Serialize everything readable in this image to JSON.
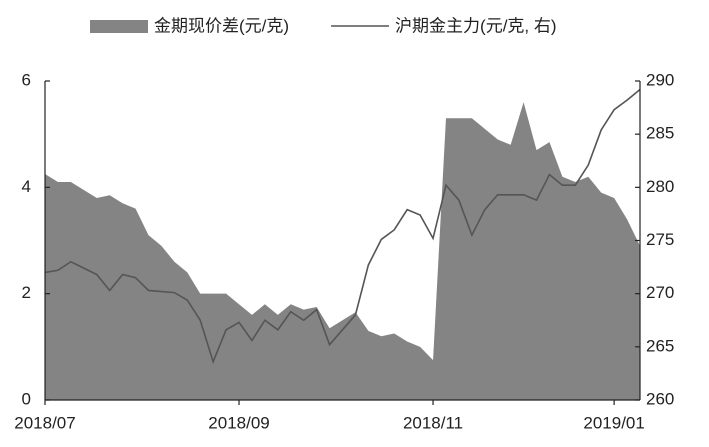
{
  "chart_data": {
    "type": "combo",
    "categories": [
      "2018/07",
      null,
      null,
      null,
      null,
      null,
      null,
      null,
      null,
      null,
      null,
      null,
      null,
      null,
      null,
      "2018/09",
      null,
      null,
      null,
      null,
      null,
      null,
      null,
      null,
      null,
      null,
      null,
      null,
      null,
      null,
      "2018/11",
      null,
      null,
      null,
      null,
      null,
      null,
      null,
      null,
      null,
      null,
      null,
      null,
      null,
      "2019/01",
      null,
      null
    ],
    "series": [
      {
        "name": "金期现价差(元/克)",
        "type": "area",
        "color": "#848484",
        "axis": "y",
        "values": [
          4.25,
          4.1,
          4.1,
          3.95,
          3.8,
          3.85,
          3.7,
          3.6,
          3.1,
          2.9,
          2.6,
          2.4,
          2.0,
          2.0,
          2.0,
          1.8,
          1.6,
          1.8,
          1.6,
          1.8,
          1.7,
          1.75,
          1.35,
          1.5,
          1.65,
          1.3,
          1.2,
          1.25,
          1.1,
          1.0,
          0.75,
          5.3,
          5.3,
          5.3,
          5.1,
          4.9,
          4.8,
          5.6,
          4.7,
          4.85,
          4.2,
          4.1,
          4.2,
          3.9,
          3.8,
          3.4,
          2.9
        ]
      },
      {
        "name": "沪期金主力(元/克, 右)",
        "type": "line",
        "color": "#555555",
        "axis": "y2",
        "values": [
          272.0,
          272.2,
          273.0,
          272.4,
          271.8,
          270.3,
          271.8,
          271.5,
          270.3,
          270.2,
          270.1,
          269.4,
          267.5,
          263.6,
          266.6,
          267.3,
          265.6,
          267.5,
          266.6,
          268.3,
          267.5,
          268.5,
          265.2,
          266.6,
          268.0,
          272.7,
          275.1,
          276.0,
          277.9,
          277.4,
          275.2,
          280.2,
          278.8,
          275.5,
          277.9,
          279.3,
          279.3,
          279.3,
          278.8,
          281.2,
          280.2,
          280.2,
          282.1,
          285.4,
          287.3,
          288.2,
          289.2
        ]
      }
    ],
    "ylim": [
      0,
      6
    ],
    "yticks": [
      0,
      2,
      4,
      6
    ],
    "y2lim": [
      260,
      290
    ],
    "y2ticks": [
      260,
      265,
      270,
      275,
      280,
      285,
      290
    ],
    "grid": false,
    "legend": "top"
  }
}
